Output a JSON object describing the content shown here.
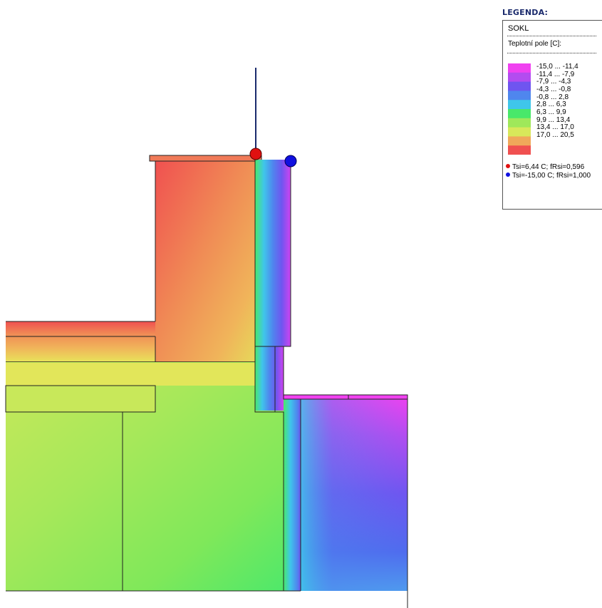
{
  "legend": {
    "heading": "LEGENDA:",
    "structure_name": "SOKL",
    "field_label": "Teplotní pole [C]:",
    "ranges": [
      {
        "label": "-15,0 ... -11,4",
        "color": "#f041f0"
      },
      {
        "label": "-11,4 ... -7,9",
        "color": "#b34cf0"
      },
      {
        "label": "-7,9 ... -4,3",
        "color": "#6f55f0"
      },
      {
        "label": "-4,3 ... -0,8",
        "color": "#4f86ee"
      },
      {
        "label": "-0,8 ... 2,8",
        "color": "#3fc6ea"
      },
      {
        "label": "2,8 ... 6,3",
        "color": "#49e86a"
      },
      {
        "label": "6,3 ... 9,9",
        "color": "#9fe85a"
      },
      {
        "label": "9,9 ... 13,4",
        "color": "#d8e85a"
      },
      {
        "label": "13,4 ... 17,0",
        "color": "#f0a85a"
      },
      {
        "label": "17,0 ... 20,5",
        "color": "#f05050"
      }
    ],
    "points": [
      {
        "label": "Tsi=6,44 C; fRsi=0,596",
        "color": "#e01010"
      },
      {
        "label": "Tsi=-15,00 C; fRsi=1,000",
        "color": "#1010e0"
      }
    ]
  },
  "markers": [
    {
      "name": "red-point",
      "color": "#e01010"
    },
    {
      "name": "blue-point",
      "color": "#1010e0"
    }
  ]
}
